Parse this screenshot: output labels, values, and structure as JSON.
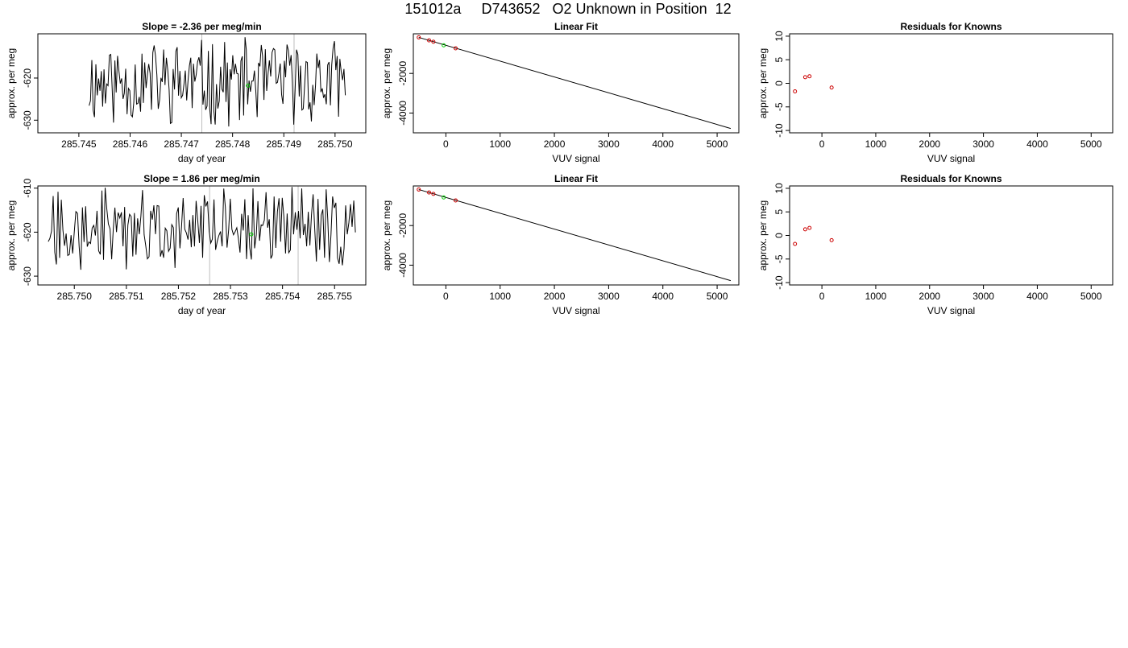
{
  "title": "151012a     D743652   O2 Unknown in Position  12",
  "colors": {
    "trace": "#000000",
    "frame": "#000000",
    "marker": "#bebebe",
    "unknown": "#00cc00",
    "known": "#cc0000"
  },
  "chart_data": [
    {
      "id": "r1c1",
      "type": "line",
      "title": "Slope =  -2.36  per meg/min",
      "xlabel": "day of year",
      "ylabel": "approx. per meg",
      "xlim": [
        285.7442,
        285.7506
      ],
      "ylim": [
        -633,
        -609.5
      ],
      "xticks": [
        285.745,
        285.746,
        285.747,
        285.748,
        285.749,
        285.75
      ],
      "xtick_labels": [
        "285.745",
        "285.746",
        "285.747",
        "285.748",
        "285.749",
        "285.750"
      ],
      "yticks": [
        -620,
        -630
      ],
      "ytick_labels": [
        "-620",
        "-630"
      ],
      "trace_xrange": [
        285.7452,
        285.7502
      ],
      "trace_seed": 11,
      "trace_mean": -621,
      "trace_amp": 9,
      "vlines": [
        285.7474,
        285.7492
      ],
      "unknown_point": [
        285.7483,
        -621.8
      ]
    },
    {
      "id": "r1c2",
      "type": "scatter",
      "title": "Linear Fit",
      "xlabel": "VUV signal",
      "ylabel": "approx. per meg",
      "xlim": [
        -600,
        5400
      ],
      "ylim": [
        -5000,
        0
      ],
      "xticks": [
        0,
        1000,
        2000,
        3000,
        4000,
        5000
      ],
      "xtick_labels": [
        "0",
        "1000",
        "2000",
        "3000",
        "4000",
        "5000"
      ],
      "yticks": [
        -2000,
        -4000
      ],
      "ytick_labels": [
        "-2000",
        "-4000"
      ],
      "fit_line": [
        [
          -500,
          -180
        ],
        [
          5250,
          -4780
        ]
      ],
      "known_points": [
        [
          -500,
          -180
        ],
        [
          -310,
          -330
        ],
        [
          -230,
          -400
        ],
        [
          180,
          -730
        ]
      ],
      "unknown_point": [
        -40,
        -580
      ]
    },
    {
      "id": "r1c3",
      "type": "scatter",
      "title": "Residuals for Knowns",
      "xlabel": "VUV signal",
      "ylabel": "approx. per meg",
      "xlim": [
        -600,
        5400
      ],
      "ylim": [
        -10.5,
        10.5
      ],
      "xticks": [
        0,
        1000,
        2000,
        3000,
        4000,
        5000
      ],
      "xtick_labels": [
        "0",
        "1000",
        "2000",
        "3000",
        "4000",
        "5000"
      ],
      "yticks": [
        10,
        5,
        0,
        -5,
        -10
      ],
      "ytick_labels": [
        "10",
        "5",
        "0",
        "-5",
        "-10"
      ],
      "known_points": [
        [
          -500,
          -1.7
        ],
        [
          -310,
          1.3
        ],
        [
          -230,
          1.5
        ],
        [
          180,
          -0.9
        ]
      ]
    },
    {
      "id": "r2c1",
      "type": "line",
      "title": "Slope =  1.86  per meg/min",
      "xlabel": "day of year",
      "ylabel": "approx. per meg",
      "xlim": [
        285.7493,
        285.7556
      ],
      "ylim": [
        -632,
        -609.5
      ],
      "xticks": [
        285.75,
        285.751,
        285.752,
        285.753,
        285.754,
        285.755
      ],
      "xtick_labels": [
        "285.750",
        "285.751",
        "285.752",
        "285.753",
        "285.754",
        "285.755"
      ],
      "yticks": [
        -610,
        -620,
        -630
      ],
      "ytick_labels": [
        "-610",
        "-620",
        "-630"
      ],
      "trace_xrange": [
        285.7495,
        285.7554
      ],
      "trace_seed": 27,
      "trace_mean": -619,
      "trace_amp": 8,
      "vlines": [
        285.7526,
        285.7543
      ],
      "unknown_point": [
        285.7534,
        -620.5
      ]
    },
    {
      "id": "r2c2",
      "type": "scatter",
      "title": "Linear Fit",
      "xlabel": "VUV signal",
      "ylabel": "approx. per meg",
      "xlim": [
        -600,
        5400
      ],
      "ylim": [
        -5000,
        0
      ],
      "xticks": [
        0,
        1000,
        2000,
        3000,
        4000,
        5000
      ],
      "xtick_labels": [
        "0",
        "1000",
        "2000",
        "3000",
        "4000",
        "5000"
      ],
      "yticks": [
        -2000,
        -4000
      ],
      "ytick_labels": [
        "-2000",
        "-4000"
      ],
      "fit_line": [
        [
          -500,
          -180
        ],
        [
          5250,
          -4780
        ]
      ],
      "known_points": [
        [
          -500,
          -180
        ],
        [
          -310,
          -330
        ],
        [
          -230,
          -400
        ],
        [
          180,
          -730
        ]
      ],
      "unknown_point": [
        -40,
        -580
      ]
    },
    {
      "id": "r2c3",
      "type": "scatter",
      "title": "Residuals for Knowns",
      "xlabel": "VUV signal",
      "ylabel": "approx. per meg",
      "xlim": [
        -600,
        5400
      ],
      "ylim": [
        -10.5,
        10.5
      ],
      "xticks": [
        0,
        1000,
        2000,
        3000,
        4000,
        5000
      ],
      "xtick_labels": [
        "0",
        "1000",
        "2000",
        "3000",
        "4000",
        "5000"
      ],
      "yticks": [
        10,
        5,
        0,
        -5,
        -10
      ],
      "ytick_labels": [
        "10",
        "5",
        "0",
        "-5",
        "-10"
      ],
      "known_points": [
        [
          -500,
          -1.8
        ],
        [
          -310,
          1.3
        ],
        [
          -230,
          1.6
        ],
        [
          180,
          -1.0
        ]
      ]
    }
  ]
}
